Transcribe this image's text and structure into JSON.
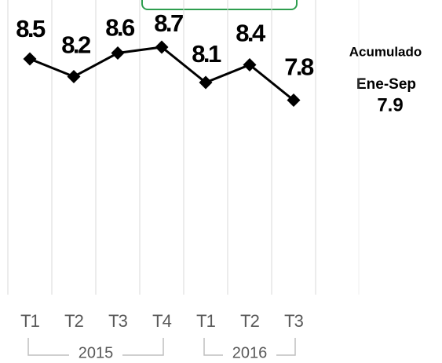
{
  "chart_data": {
    "type": "line",
    "categories": [
      "T1",
      "T2",
      "T3",
      "T4",
      "T1",
      "T2",
      "T3"
    ],
    "series": [
      {
        "values": [
          8.5,
          8.2,
          8.6,
          8.7,
          8.1,
          8.4,
          7.8
        ],
        "color": "#000000"
      }
    ],
    "groups": [
      "2015",
      "2016"
    ],
    "ylim": [
      4.5,
      9.5
    ],
    "grid": true,
    "annotation": {
      "title": "Acumulado",
      "period": "Ene-Sep",
      "value": 7.9
    }
  }
}
